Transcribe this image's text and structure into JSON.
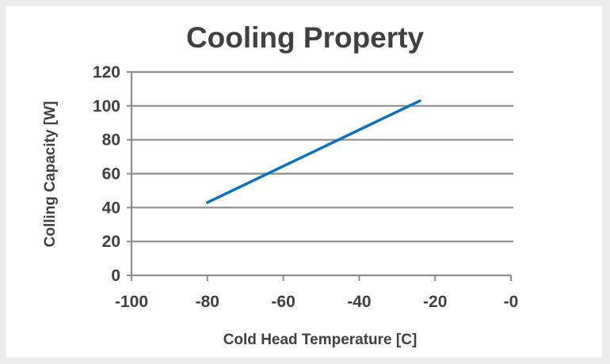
{
  "chart_data": {
    "type": "line",
    "title": "Cooling Property",
    "xlabel": "Cold Head Temperature [C]",
    "ylabel": "Colling Capacity [W]",
    "xlim": [
      -100,
      0
    ],
    "ylim": [
      0,
      120
    ],
    "x_ticks": [
      -100,
      -80,
      -60,
      -40,
      -20,
      0
    ],
    "x_tick_labels": [
      "-100",
      "-80",
      "-60",
      "-40",
      "-20",
      "-0"
    ],
    "y_ticks": [
      0,
      20,
      40,
      60,
      80,
      100,
      120
    ],
    "y_tick_labels": [
      "0",
      "20",
      "40",
      "60",
      "80",
      "100",
      "120"
    ],
    "grid": "horizontal",
    "legend": "none",
    "series": [
      {
        "color": "#0e70c0",
        "x": [
          -80,
          -24
        ],
        "y": [
          43,
          103
        ]
      }
    ]
  }
}
